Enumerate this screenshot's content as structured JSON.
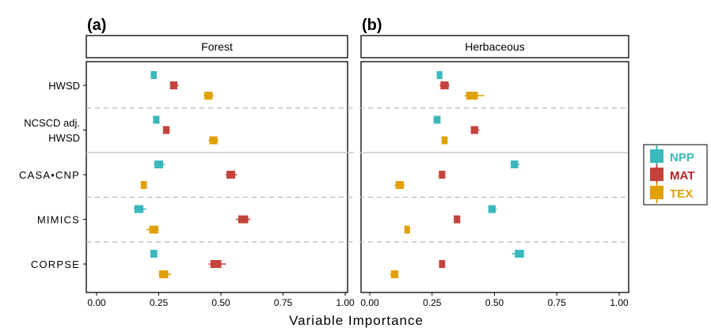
{
  "figure": {
    "x_axis_title": "Variable Importance",
    "categories": [
      "HWSD",
      "NCSCD adj.\nHWSD",
      "CASA•CNP",
      "MIMICS",
      "CORPSE"
    ],
    "x_ticks": [
      "0.00",
      "0.25",
      "0.50",
      "0.75",
      "1.00"
    ],
    "legend": [
      {
        "label": "NPP",
        "color": "#3ab8bd"
      },
      {
        "label": "MAT",
        "color": "#c5433d"
      },
      {
        "label": "TEX",
        "color": "#e0a106"
      }
    ]
  },
  "chart_data": [
    {
      "type": "scatter",
      "panel_letter": "(a)",
      "title": "Forest",
      "xlim": [
        0,
        1
      ],
      "x_ticks": [
        0,
        0.25,
        0.5,
        0.75,
        1.0
      ],
      "categories": [
        "HWSD",
        "NCSCD adj. HWSD",
        "CASA•CNP",
        "MIMICS",
        "CORPSE"
      ],
      "series": [
        {
          "name": "NPP",
          "color": "#3ab8bd",
          "values": [
            0.23,
            0.24,
            0.25,
            0.17,
            0.23
          ],
          "ranges": [
            [
              0.225,
              0.24
            ],
            [
              0.23,
              0.25
            ],
            [
              0.23,
              0.275
            ],
            [
              0.15,
              0.2
            ],
            [
              0.22,
              0.245
            ]
          ]
        },
        {
          "name": "MAT",
          "color": "#c5433d",
          "values": [
            0.31,
            0.28,
            0.54,
            0.59,
            0.48
          ],
          "ranges": [
            [
              0.3,
              0.33
            ],
            [
              0.275,
              0.295
            ],
            [
              0.52,
              0.565
            ],
            [
              0.56,
              0.62
            ],
            [
              0.45,
              0.52
            ]
          ]
        },
        {
          "name": "TEX",
          "color": "#e0a106",
          "values": [
            0.45,
            0.47,
            0.19,
            0.23,
            0.27
          ],
          "ranges": [
            [
              0.43,
              0.47
            ],
            [
              0.45,
              0.49
            ],
            [
              0.185,
              0.2
            ],
            [
              0.2,
              0.25
            ],
            [
              0.25,
              0.3
            ]
          ]
        }
      ]
    },
    {
      "type": "scatter",
      "panel_letter": "(b)",
      "title": "Herbaceous",
      "xlim": [
        0,
        1
      ],
      "x_ticks": [
        0,
        0.25,
        0.5,
        0.75,
        1.0
      ],
      "categories": [
        "HWSD",
        "NCSCD adj. HWSD",
        "CASA•CNP",
        "MIMICS",
        "CORPSE"
      ],
      "series": [
        {
          "name": "NPP",
          "color": "#3ab8bd",
          "values": [
            0.28,
            0.27,
            0.58,
            0.49,
            0.6
          ],
          "ranges": [
            [
              0.275,
              0.285
            ],
            [
              0.255,
              0.28
            ],
            [
              0.57,
              0.6
            ],
            [
              0.48,
              0.51
            ],
            [
              0.57,
              0.62
            ]
          ]
        },
        {
          "name": "MAT",
          "color": "#c5433d",
          "values": [
            0.3,
            0.42,
            0.29,
            0.35,
            0.29
          ],
          "ranges": [
            [
              0.28,
              0.32
            ],
            [
              0.41,
              0.44
            ],
            [
              0.28,
              0.3
            ],
            [
              0.34,
              0.36
            ],
            [
              0.285,
              0.3
            ]
          ]
        },
        {
          "name": "TEX",
          "color": "#e0a106",
          "values": [
            0.41,
            0.3,
            0.12,
            0.15,
            0.1
          ],
          "ranges": [
            [
              0.38,
              0.46
            ],
            [
              0.295,
              0.31
            ],
            [
              0.1,
              0.14
            ],
            [
              0.145,
              0.155
            ],
            [
              0.08,
              0.11
            ]
          ]
        }
      ]
    }
  ]
}
